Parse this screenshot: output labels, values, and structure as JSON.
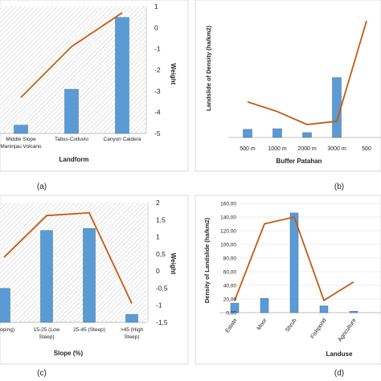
{
  "panels": [
    {
      "caption": "(a)",
      "xlabel": "Landform",
      "ylabel_right": "Weight",
      "ylabel_left": "",
      "categories": [
        "Middle Slope Maninjau Volcano",
        "Tallus-Colluvio",
        "Canyon Caldera"
      ],
      "category_lines": [
        [
          "Middle Slope",
          "Maninjau Volcano"
        ],
        [
          "Tallus-Colluvio"
        ],
        [
          "Canyon Caldera"
        ]
      ],
      "right_ticks": [
        "1",
        "0",
        "-1",
        "-2",
        "-3",
        "-4",
        "-5"
      ]
    },
    {
      "caption": "(b)",
      "xlabel": "Buffer Patahan",
      "ylabel_left": "Landslide of Density (ha/km2)",
      "ylabel_right": "",
      "categories": [
        "500 m",
        "1000 m",
        "2000 m",
        "3000 m",
        "500"
      ],
      "left_ticks": []
    },
    {
      "caption": "(c)",
      "xlabel": "Slope (%)",
      "ylabel_right": "Weight",
      "ylabel_left": "",
      "categories": [
        "(Sloping)",
        "15-25 (Low Steep)",
        "25-45 (Steep)",
        ">45 (High Steep)"
      ],
      "category_lines": [
        [
          "(Sloping)"
        ],
        [
          "15-25 (Low",
          "Steep)"
        ],
        [
          "25-45 (Steep)"
        ],
        [
          ">45 (High",
          "Steep)"
        ]
      ],
      "right_ticks": [
        "2",
        "1,5",
        "1",
        "0,5",
        "0",
        "-0,5",
        "-1",
        "-1,5"
      ]
    },
    {
      "caption": "(d)",
      "xlabel": "Landuse",
      "ylabel_left": "Density of Landslide (ha/km2)",
      "ylabel_right": "",
      "categories": [
        "Estate",
        "Moor",
        "Shrub",
        "Fishpond",
        "Agriculture"
      ],
      "left_ticks": [
        "160,00",
        "140,00",
        "120,00",
        "100,00",
        "80,00",
        "60,00",
        "40,00",
        "20,00",
        "0,00"
      ]
    }
  ],
  "chart_data": [
    {
      "type": "bar",
      "title": "",
      "xlabel": "Landform",
      "ylabel": "Weight",
      "categories": [
        "Middle Slope Maninjau Volcano",
        "Tallus-Colluvio",
        "Canyon Caldera"
      ],
      "series": [
        {
          "kind": "bar",
          "axis": "left",
          "values": [
            0.3,
            1.6,
            4.2
          ]
        },
        {
          "kind": "line",
          "axis": "right",
          "values": [
            -3.3,
            -0.9,
            0.7
          ]
        }
      ],
      "ylim_left": [
        0,
        4.6
      ],
      "ylim_right": [
        -5,
        1
      ],
      "colors": {
        "bar": "#5b9bd5",
        "line": "#c55a11"
      },
      "grid": "hatched"
    },
    {
      "type": "bar",
      "title": "",
      "xlabel": "Buffer Patahan",
      "ylabel": "Landslide of Density (ha/km2)",
      "categories": [
        "500 m",
        "1000 m",
        "2000 m",
        "3000 m",
        "500"
      ],
      "series": [
        {
          "kind": "bar",
          "axis": "left",
          "values": [
            2.5,
            2.7,
            1.5,
            18.5,
            0
          ]
        },
        {
          "kind": "line",
          "axis": "left",
          "values": [
            11,
            8,
            4,
            5,
            36
          ]
        }
      ],
      "ylim_left": [
        0,
        40
      ],
      "colors": {
        "bar": "#5b9bd5",
        "line": "#c55a11"
      },
      "grid": "none"
    },
    {
      "type": "bar",
      "title": "",
      "xlabel": "Slope (%)",
      "ylabel": "Weight",
      "categories": [
        "(Sloping)",
        "15-25 (Low Steep)",
        "25-45 (Steep)",
        ">45 (High Steep)"
      ],
      "series": [
        {
          "kind": "bar",
          "axis": "left",
          "values": [
            17,
            46,
            47,
            4
          ]
        },
        {
          "kind": "line",
          "axis": "right",
          "values": [
            0.4,
            1.62,
            1.7,
            -0.95
          ]
        }
      ],
      "ylim_left": [
        0,
        60
      ],
      "ylim_right": [
        -1.5,
        2
      ],
      "colors": {
        "bar": "#5b9bd5",
        "line": "#c55a11"
      },
      "grid": "hatched"
    },
    {
      "type": "bar",
      "title": "",
      "xlabel": "Landuse",
      "ylabel": "Density of Landslide (ha/km2)",
      "categories": [
        "Estate",
        "Moor",
        "Shrub",
        "Fishpond",
        "Agriculture"
      ],
      "series": [
        {
          "kind": "bar",
          "axis": "left",
          "values": [
            14,
            21,
            146,
            10,
            2
          ]
        },
        {
          "kind": "line",
          "axis": "left",
          "values": [
            18,
            130,
            140,
            18,
            45
          ]
        }
      ],
      "ylim_left": [
        0,
        160
      ],
      "colors": {
        "bar": "#5b9bd5",
        "line": "#c55a11"
      },
      "grid": "none"
    }
  ]
}
